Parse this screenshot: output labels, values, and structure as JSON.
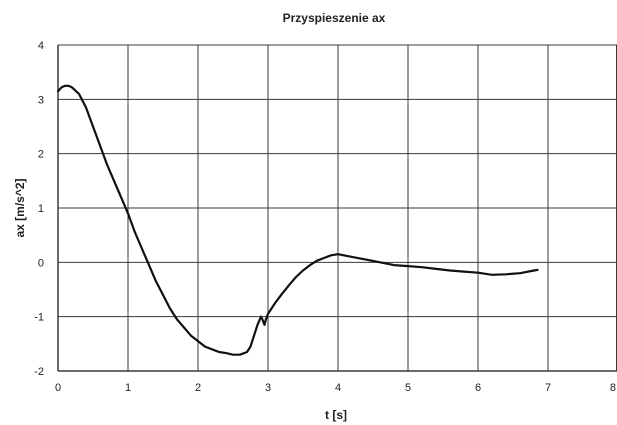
{
  "chart_data": {
    "type": "line",
    "title": "Przyspieszenie ax",
    "xlabel": "t [s]",
    "ylabel": "ax [m/s^2]",
    "xlim": [
      0,
      8
    ],
    "ylim": [
      -2,
      4
    ],
    "x_ticks": [
      "0",
      "1",
      "2",
      "3",
      "4",
      "5",
      "6",
      "7",
      "8"
    ],
    "y_ticks": [
      "4",
      "3",
      "2",
      "1",
      "0",
      "-1",
      "-2"
    ],
    "grid": true,
    "legend": "none",
    "colors": {
      "line": "#111111",
      "grid": "#3a3a3a",
      "background": "#ffffff"
    },
    "series": [
      {
        "x": [
          0.0,
          0.05,
          0.1,
          0.15,
          0.2,
          0.3,
          0.4,
          0.5,
          0.6,
          0.7,
          0.8,
          0.9,
          1.0,
          1.1,
          1.2,
          1.3,
          1.4,
          1.5,
          1.6,
          1.7,
          1.8,
          1.9,
          2.0,
          2.1,
          2.2,
          2.3,
          2.4,
          2.5,
          2.6,
          2.7,
          2.75,
          2.8,
          2.85,
          2.9,
          2.92,
          2.95,
          2.97,
          3.0,
          3.1,
          3.2,
          3.3,
          3.4,
          3.5,
          3.6,
          3.7,
          3.8,
          3.9,
          4.0,
          4.2,
          4.4,
          4.6,
          4.8,
          5.0,
          5.2,
          5.4,
          5.6,
          5.8,
          6.0,
          6.2,
          6.4,
          6.6,
          6.8,
          6.85
        ],
        "values": [
          3.15,
          3.22,
          3.25,
          3.25,
          3.22,
          3.1,
          2.85,
          2.5,
          2.15,
          1.8,
          1.5,
          1.2,
          0.9,
          0.55,
          0.25,
          -0.05,
          -0.35,
          -0.6,
          -0.85,
          -1.05,
          -1.2,
          -1.35,
          -1.45,
          -1.55,
          -1.6,
          -1.65,
          -1.67,
          -1.7,
          -1.7,
          -1.65,
          -1.55,
          -1.35,
          -1.15,
          -1.0,
          -1.05,
          -1.15,
          -1.05,
          -0.95,
          -0.75,
          -0.58,
          -0.42,
          -0.27,
          -0.15,
          -0.05,
          0.03,
          0.08,
          0.13,
          0.15,
          0.1,
          0.05,
          0.0,
          -0.05,
          -0.07,
          -0.09,
          -0.12,
          -0.15,
          -0.17,
          -0.19,
          -0.23,
          -0.22,
          -0.2,
          -0.15,
          -0.14
        ]
      }
    ]
  }
}
